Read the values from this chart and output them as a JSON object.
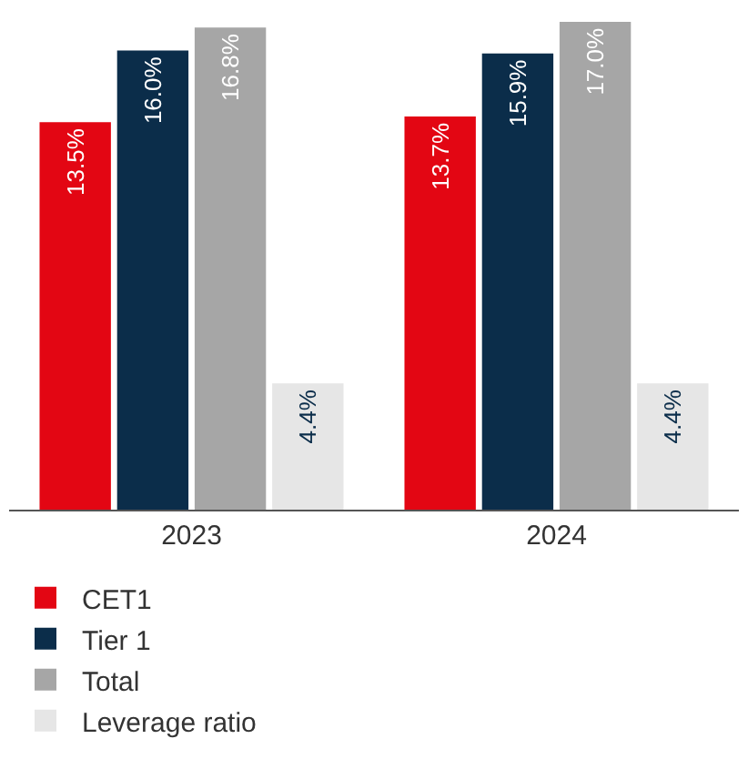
{
  "chart_data": {
    "type": "bar",
    "categories": [
      "2023",
      "2024"
    ],
    "series": [
      {
        "name": "CET1",
        "color": "#e30613",
        "values": [
          13.5,
          13.7
        ],
        "value_labels": [
          "13.5%",
          "13.7%"
        ]
      },
      {
        "name": "Tier 1",
        "color": "#0b2d4a",
        "values": [
          16.0,
          15.9
        ],
        "value_labels": [
          "16.0%",
          "15.9%"
        ]
      },
      {
        "name": "Total",
        "color": "#a6a6a6",
        "values": [
          16.8,
          17.0
        ],
        "value_labels": [
          "16.8%",
          "17.0%"
        ]
      },
      {
        "name": "Leverage ratio",
        "color": "#e6e6e6",
        "values": [
          4.4,
          4.4
        ],
        "value_labels": [
          "4.4%",
          "4.4%"
        ]
      }
    ],
    "legend": "bottom left",
    "grid": false
  }
}
